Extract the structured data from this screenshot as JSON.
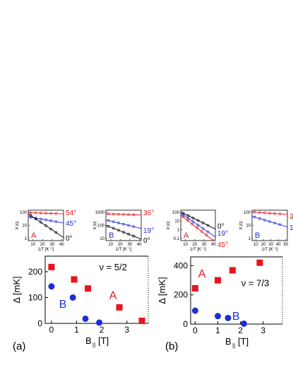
{
  "chart_data": [
    {
      "type": "scatter",
      "panel": "(a)",
      "xlabel_main": "B",
      "xlabel_sub": "||",
      "xlabel_unit": "[T]",
      "ylabel": "Δ [mK]",
      "xlim": [
        -0.25,
        3.85
      ],
      "ylim": [
        0,
        260
      ],
      "xticks": [
        0,
        1,
        2,
        3
      ],
      "yticks": [
        0,
        100,
        200
      ],
      "annotation": "ν = 5/2",
      "series": [
        {
          "name": "A",
          "marker": "square",
          "color": "#e8141c",
          "x": [
            0.0,
            0.9,
            1.45,
            2.7,
            3.6
          ],
          "y": [
            218,
            170,
            135,
            62,
            10
          ]
        },
        {
          "name": "B",
          "marker": "circle",
          "color": "#1c2fd6",
          "x": [
            0.0,
            0.85,
            1.35,
            1.9
          ],
          "y": [
            143,
            100,
            18,
            3
          ]
        }
      ],
      "insets": [
        {
          "label": "A",
          "label_color": "#e8141c",
          "xlabel": "1/T [K⁻¹]",
          "ylabel": "R [Ω]",
          "xticks": [
            10,
            20,
            30,
            40
          ],
          "yticks_labels": [
            "1",
            "10",
            "100"
          ],
          "angles": [
            {
              "text": "54°",
              "color": "#e8141c"
            },
            {
              "text": "45°",
              "color": "#1c2fd6"
            },
            {
              "text": "0°",
              "color": "#000000"
            }
          ]
        },
        {
          "label": "B",
          "label_color": "#1c2fd6",
          "xlabel": "1/T [K⁻¹]",
          "ylabel": "R [Ω]",
          "xticks": [
            10,
            20,
            30,
            40
          ],
          "yticks_labels": [
            "10",
            "100",
            "1000"
          ],
          "angles": [
            {
              "text": "36°",
              "color": "#e8141c"
            },
            {
              "text": "19°",
              "color": "#1c2fd6"
            },
            {
              "text": "0°",
              "color": "#000000"
            }
          ]
        }
      ]
    },
    {
      "type": "scatter",
      "panel": "(b)",
      "xlabel_main": "B",
      "xlabel_sub": "||",
      "xlabel_unit": "[T]",
      "ylabel": "Δ [mK]",
      "xlim": [
        -0.2,
        3.85
      ],
      "ylim": [
        0,
        460
      ],
      "xticks": [
        0,
        1,
        2,
        3
      ],
      "yticks": [
        0,
        200,
        400
      ],
      "annotation": "ν = 7/3",
      "series": [
        {
          "name": "A",
          "marker": "square",
          "color": "#e8141c",
          "x": [
            0.0,
            1.0,
            1.65,
            2.85
          ],
          "y": [
            245,
            300,
            368,
            420
          ]
        },
        {
          "name": "B",
          "marker": "circle",
          "color": "#1c2fd6",
          "x": [
            0.0,
            1.0,
            1.45,
            2.15
          ],
          "y": [
            92,
            55,
            42,
            3
          ]
        }
      ],
      "insets": [
        {
          "label": "A",
          "label_color": "#e8141c",
          "xlabel": "1/T [K⁻¹]",
          "ylabel": "R [Ω]",
          "xticks": [
            10,
            20,
            30,
            40
          ],
          "yticks_labels": [
            "0.1",
            "1",
            "10",
            "100"
          ],
          "angles": [
            {
              "text": "0°",
              "color": "#000000"
            },
            {
              "text": "19°",
              "color": "#1c2fd6"
            },
            {
              "text": "45°",
              "color": "#e8141c"
            }
          ]
        },
        {
          "label": "B",
          "label_color": "#1c2fd6",
          "xlabel": "1/T [K⁻¹]",
          "ylabel": "R [Ω]",
          "xticks": [
            10,
            20,
            30,
            40,
            50
          ],
          "yticks_labels": [
            "1",
            "10",
            "100"
          ],
          "angles": [
            {
              "text": "3",
              "color": "#e8141c"
            },
            {
              "text": "1",
              "color": "#1c2fd6"
            }
          ]
        }
      ]
    }
  ]
}
